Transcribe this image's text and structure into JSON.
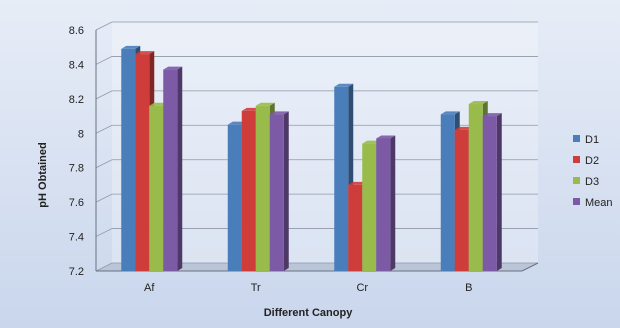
{
  "chart_data": {
    "type": "bar",
    "categories": [
      "Af",
      "Tr",
      "Cr",
      "B"
    ],
    "series": [
      {
        "name": "D1",
        "values": [
          8.49,
          8.05,
          8.27,
          8.11
        ],
        "color": "#4a7ebb"
      },
      {
        "name": "D2",
        "values": [
          8.46,
          8.13,
          7.7,
          8.02
        ],
        "color": "#cf3d3a"
      },
      {
        "name": "D3",
        "values": [
          8.16,
          8.16,
          7.94,
          8.17
        ],
        "color": "#98bb4c"
      },
      {
        "name": "Mean",
        "values": [
          8.37,
          8.11,
          7.97,
          8.1
        ],
        "color": "#7d5aa6"
      }
    ],
    "yticks": [
      "7.2",
      "7.4",
      "7.6",
      "7.8",
      "8",
      "8.2",
      "8.4",
      "8.6"
    ],
    "ylim": [
      7.2,
      8.6
    ],
    "xlabel": "Different Canopy",
    "ylabel": "pH Obtained",
    "grid": true,
    "legend_position": "right"
  }
}
